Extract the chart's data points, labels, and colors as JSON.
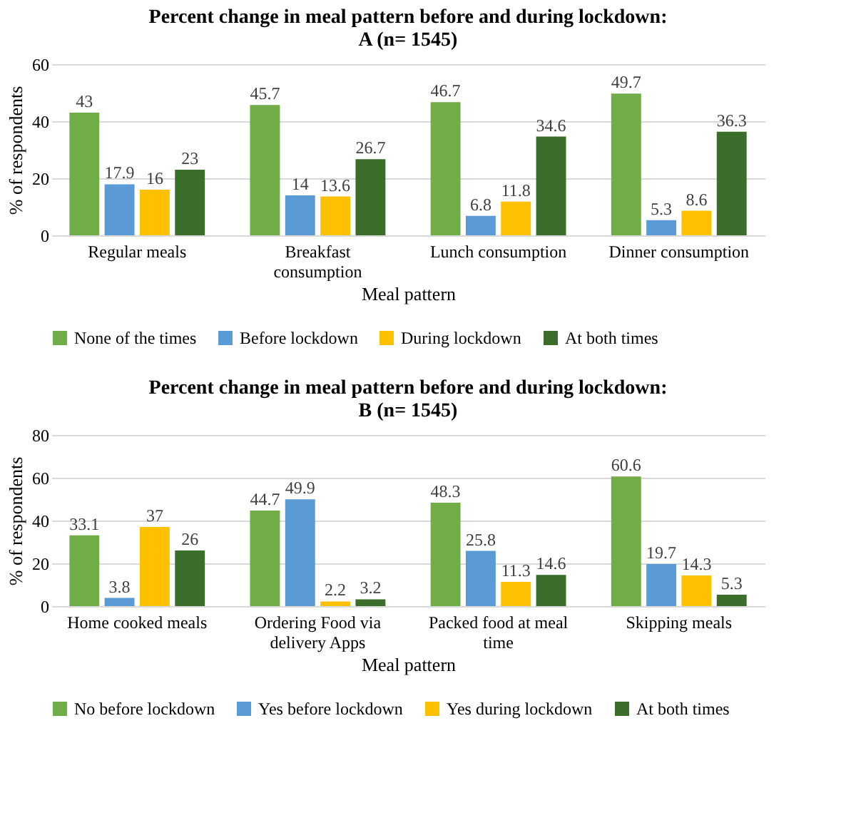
{
  "chart_data": [
    {
      "type": "bar",
      "title": [
        "Percent change in meal pattern before and during lockdown:",
        "A  (n= 1545)"
      ],
      "xlabel": "Meal pattern",
      "ylabel": "% of respondents",
      "categories": [
        "Regular meals",
        "Breakfast consumption",
        "Lunch consumption",
        "Dinner consumption"
      ],
      "series": [
        {
          "name": "None of the times",
          "color": "#70ad47",
          "values": [
            43,
            45.7,
            46.7,
            49.7
          ]
        },
        {
          "name": "Before lockdown",
          "color": "#5b9bd5",
          "values": [
            17.9,
            14,
            6.8,
            5.3
          ]
        },
        {
          "name": "During lockdown",
          "color": "#ffc000",
          "values": [
            16,
            13.6,
            11.8,
            8.6
          ]
        },
        {
          "name": "At both times",
          "color": "#3b6e2a",
          "values": [
            23,
            26.7,
            34.6,
            36.3
          ]
        }
      ],
      "ylim": [
        0,
        60
      ],
      "yticks": [
        0,
        20,
        40,
        60
      ],
      "grid": "y",
      "legend": "bottom",
      "data_labels": true
    },
    {
      "type": "bar",
      "title": [
        "Percent change in meal pattern before and during lockdown:",
        "B (n= 1545)"
      ],
      "xlabel": "Meal pattern",
      "ylabel": "% of respondents",
      "categories": [
        "Home cooked meals",
        "Ordering Food via delivery Apps",
        "Packed food at meal time",
        "Skipping meals"
      ],
      "series": [
        {
          "name": "No before lockdown",
          "color": "#70ad47",
          "values": [
            33.1,
            44.7,
            48.3,
            60.6
          ]
        },
        {
          "name": "Yes before lockdown",
          "color": "#5b9bd5",
          "values": [
            3.8,
            49.9,
            25.8,
            19.7
          ]
        },
        {
          "name": "Yes during lockdown",
          "color": "#ffc000",
          "values": [
            37,
            2.2,
            11.3,
            14.3
          ]
        },
        {
          "name": "At both times",
          "color": "#3b6e2a",
          "values": [
            26,
            3.2,
            14.6,
            5.3
          ]
        }
      ],
      "ylim": [
        0,
        80
      ],
      "yticks": [
        0,
        20,
        40,
        60,
        80
      ],
      "grid": "y",
      "legend": "bottom",
      "data_labels": true
    }
  ]
}
